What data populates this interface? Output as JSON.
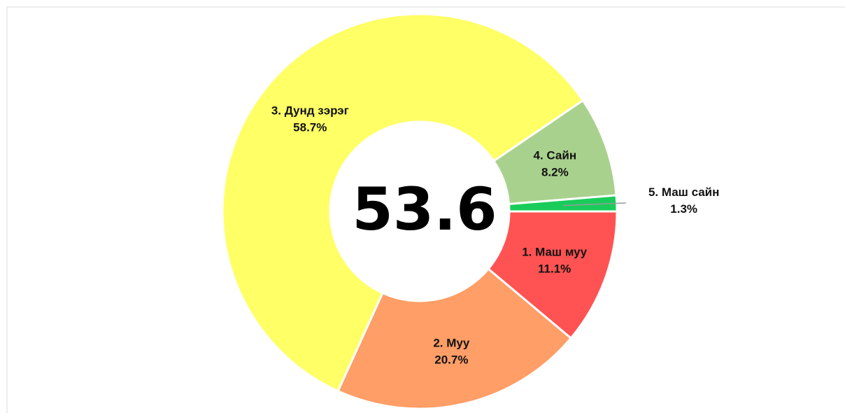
{
  "chart_data": {
    "type": "donut",
    "categories": [
      "1. Маш муу",
      "2. Муу",
      "3. Дунд зэрэг",
      "4. Сайн",
      "5. Маш сайн"
    ],
    "values": [
      11.1,
      20.7,
      58.7,
      8.2,
      1.3
    ],
    "value_labels": [
      "11.1%",
      "20.7%",
      "58.7%",
      "8.2%",
      "1.3%"
    ],
    "colors": [
      "#ff5252",
      "#ff9e66",
      "#ffff66",
      "#a9d18e",
      "#19cc5a"
    ],
    "center_label": 53.6
  }
}
